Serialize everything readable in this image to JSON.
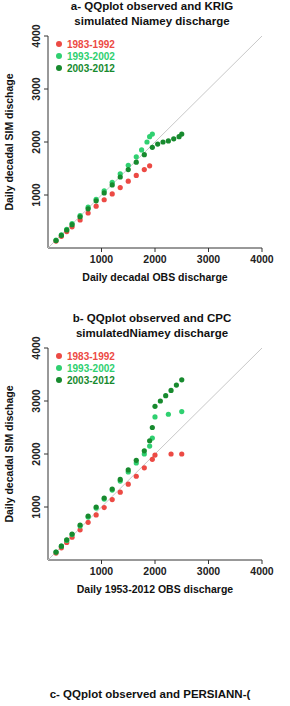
{
  "chart_data": [
    {
      "type": "scatter",
      "title": "a- QQplot observed and KRIG\nsimulated Niamey discharge",
      "x_label": "Daily decadal OBS discharge",
      "y_label": "Daily decadal SIM dischage",
      "xlim": [
        0,
        4000
      ],
      "ylim": [
        0,
        4000
      ],
      "xticks": [
        1000,
        2000,
        3000,
        4000
      ],
      "yticks": [
        1000,
        2000,
        3000,
        4000
      ],
      "legend": "top-left",
      "marker": "circle",
      "series": [
        {
          "name": "1983-1992",
          "color": "#ec4a44",
          "x": [
            150,
            250,
            350,
            450,
            600,
            750,
            900,
            1050,
            1200,
            1350,
            1500,
            1650,
            1800,
            1900
          ],
          "values": [
            130,
            220,
            310,
            400,
            530,
            660,
            790,
            910,
            1020,
            1140,
            1260,
            1370,
            1480,
            1550
          ]
        },
        {
          "name": "1993-2002",
          "color": "#2fd070",
          "x": [
            150,
            250,
            350,
            450,
            600,
            750,
            900,
            1050,
            1200,
            1350,
            1500,
            1650,
            1750,
            1850,
            1900,
            1950
          ],
          "values": [
            150,
            250,
            350,
            460,
            610,
            770,
            920,
            1080,
            1240,
            1400,
            1560,
            1720,
            1850,
            2000,
            2100,
            2150
          ]
        },
        {
          "name": "2003-2012",
          "color": "#178a2e",
          "x": [
            150,
            250,
            350,
            450,
            600,
            750,
            900,
            1050,
            1200,
            1350,
            1500,
            1650,
            1800,
            1950,
            2050,
            2150,
            2250,
            2350,
            2450,
            2500
          ],
          "values": [
            140,
            240,
            340,
            440,
            590,
            740,
            890,
            1040,
            1190,
            1340,
            1480,
            1620,
            1760,
            1900,
            1960,
            2000,
            2020,
            2060,
            2100,
            2150
          ]
        }
      ]
    },
    {
      "type": "scatter",
      "title": "b- QQplot observed and CPC\nsimulatedNiamey discharge",
      "x_label": "Daily 1953-2012 OBS discharge",
      "y_label": "Daily decadal SIM dischage",
      "xlim": [
        0,
        4000
      ],
      "ylim": [
        0,
        4000
      ],
      "xticks": [
        1000,
        2000,
        3000,
        4000
      ],
      "yticks": [
        1000,
        2000,
        3000,
        4000
      ],
      "legend": "top-left",
      "marker": "circle",
      "series": [
        {
          "name": "1983-1992",
          "color": "#ec4a44",
          "x": [
            150,
            250,
            350,
            450,
            600,
            750,
            900,
            1050,
            1200,
            1350,
            1500,
            1650,
            1800,
            1950,
            2000,
            2300,
            2500
          ],
          "values": [
            130,
            230,
            330,
            430,
            570,
            710,
            850,
            990,
            1140,
            1280,
            1430,
            1580,
            1740,
            1900,
            1980,
            2000,
            2000
          ]
        },
        {
          "name": "1993-2002",
          "color": "#2fd070",
          "x": [
            150,
            250,
            350,
            450,
            600,
            750,
            900,
            1050,
            1200,
            1350,
            1500,
            1650,
            1800,
            1900,
            1950,
            2000,
            2250,
            2500
          ],
          "values": [
            150,
            260,
            370,
            480,
            640,
            810,
            980,
            1150,
            1320,
            1490,
            1660,
            1830,
            2000,
            2150,
            2300,
            2700,
            2750,
            2800
          ]
        },
        {
          "name": "2003-2012",
          "color": "#178a2e",
          "x": [
            150,
            250,
            350,
            450,
            600,
            750,
            900,
            1050,
            1200,
            1350,
            1500,
            1650,
            1800,
            1900,
            1950,
            2000,
            2100,
            2200,
            2300,
            2400,
            2500
          ],
          "values": [
            150,
            260,
            380,
            490,
            660,
            830,
            1000,
            1170,
            1340,
            1520,
            1700,
            1880,
            2060,
            2250,
            2500,
            2900,
            3000,
            3100,
            3200,
            3300,
            3400
          ]
        }
      ]
    }
  ],
  "footer_title": "c- QQplot observed and PERSIANN-("
}
